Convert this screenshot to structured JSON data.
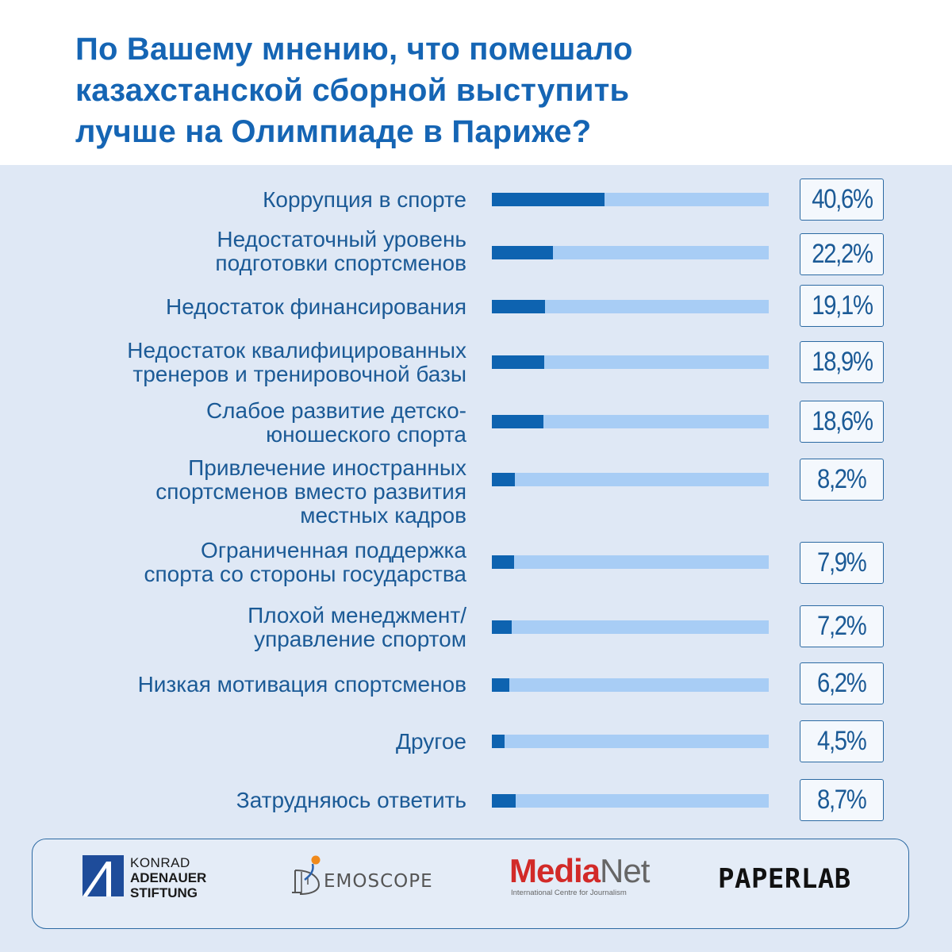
{
  "title_lines": [
    "По Вашему мнению, что помешало",
    "казахстанской сборной выступить",
    "лучше на Олимпиаде в Париже?"
  ],
  "colors": {
    "title": "#1565b4",
    "bar_fill": "#0e63b0",
    "bar_track": "#a8cdf5",
    "panel_background": "#dfe8f5"
  },
  "chart_data": {
    "type": "bar",
    "orientation": "horizontal",
    "title": "По Вашему мнению, что помешало казахстанской сборной выступить лучше на Олимпиаде в Париже?",
    "unit": "%",
    "xlim": [
      0,
      100
    ],
    "categories": [
      [
        "Коррупция в спорте"
      ],
      [
        "Недостаточный уровень",
        "подготовки спортсменов"
      ],
      [
        "Недостаток финансирования"
      ],
      [
        "Недостаток квалифицированных",
        "тренеров и тренировочной базы"
      ],
      [
        "Слабое развитие детско-",
        "юношеского спорта"
      ],
      [
        "Привлечение иностранных",
        "спортсменов вместо развития",
        "местных кадров"
      ],
      [
        "Ограниченная поддержка",
        "спорта со стороны государства"
      ],
      [
        "Плохой менеджмент/",
        "управление спортом"
      ],
      [
        "Низкая мотивация спортсменов"
      ],
      [
        "Другое"
      ],
      [
        "Затрудняюсь ответить"
      ]
    ],
    "values": [
      40.6,
      22.2,
      19.1,
      18.9,
      18.6,
      8.2,
      7.9,
      7.2,
      6.2,
      4.5,
      8.7
    ],
    "value_labels": [
      "40,6%",
      "22,2%",
      "19,1%",
      "18,9%",
      "18,6%",
      "8,2%",
      "7,9%",
      "7,2%",
      "6,2%",
      "4,5%",
      "8,7%"
    ]
  },
  "logos": {
    "kas": [
      "KONRAD",
      "ADENAUER",
      "STIFTUNG"
    ],
    "demoscope": "EMOSCOPE",
    "medianet_a": "Media",
    "medianet_b": "Net",
    "medianet_sub": "International Centre for Journalism",
    "paperlab": "PAPERLAB"
  }
}
